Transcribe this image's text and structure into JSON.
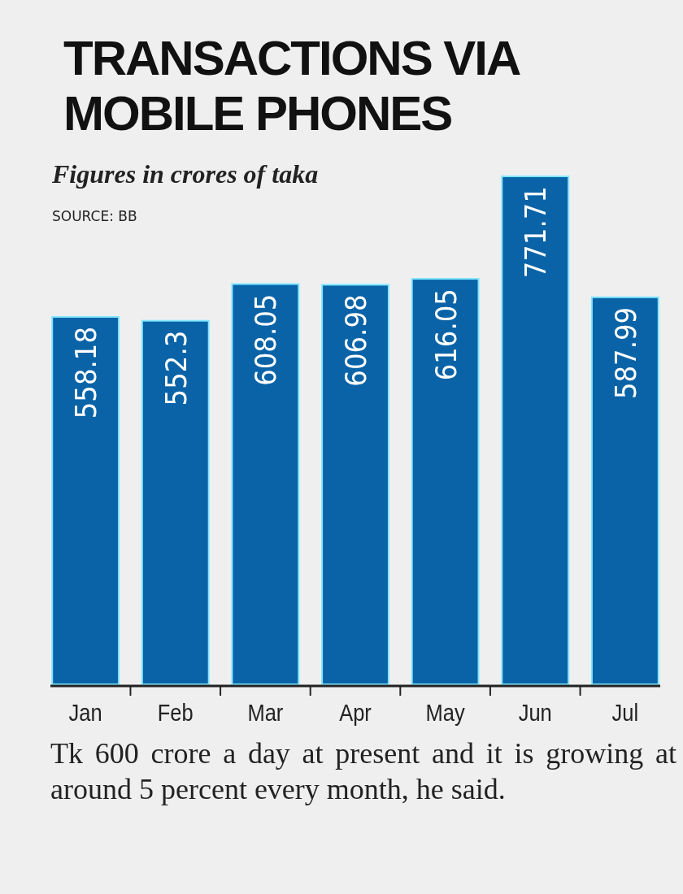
{
  "chart_data": {
    "type": "bar",
    "title": "TRANSACTIONS VIA MOBILE PHONES",
    "subtitle": "Figures in crores of taka",
    "annotations": [
      "SOURCE: BB",
      "Tk 600 crore a day at present and it is growing at around 5 percent every month, he said."
    ],
    "categories": [
      "Jan",
      "Feb",
      "Mar",
      "Apr",
      "May",
      "Jun",
      "Jul"
    ],
    "values": [
      558.18,
      552.3,
      608.05,
      606.98,
      616.05,
      771.71,
      587.99
    ],
    "color": "#0a63a6",
    "data_labels": true
  }
}
